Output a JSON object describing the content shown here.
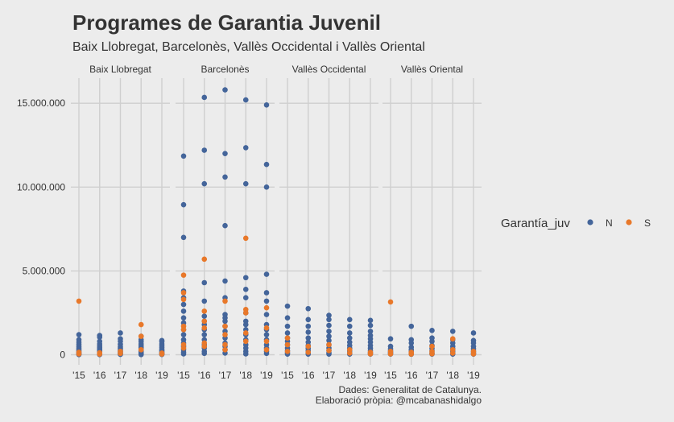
{
  "chart_data": {
    "type": "scatter",
    "title": "Programes de Garantia Juvenil",
    "subtitle": "Baix Llobregat, Barcelonès, Vallès Occidental i Vallès Oriental",
    "caption_line1": "Dades: Generalitat de Catalunya.",
    "caption_line2": "Elaboració pròpia: @mcabanashidalgo",
    "legend_title": "Garantía_juv",
    "ylim": [
      -600000,
      16500000
    ],
    "y_ticks": [
      0,
      5000000,
      10000000,
      15000000
    ],
    "y_tick_labels": [
      "0",
      "5.000.000",
      "10.000.000",
      "15.000.000"
    ],
    "x_categories": [
      "'15",
      "'16",
      "'17",
      "'18",
      "'19"
    ],
    "grid": true,
    "legend_position": "right",
    "series": [
      {
        "name": "N",
        "color": "#44659a"
      },
      {
        "name": "S",
        "color": "#e8782a"
      }
    ],
    "facets": [
      {
        "name": "Baix Llobregat",
        "N": [
          [
            1200000,
            900000,
            750000,
            620000,
            500000,
            400000,
            320000,
            250000,
            180000,
            120000,
            70000,
            30000,
            10000
          ],
          [
            1150000,
            1050000,
            800000,
            650000,
            520000,
            420000,
            330000,
            250000,
            180000,
            120000,
            70000,
            30000,
            10000
          ],
          [
            1300000,
            950000,
            800000,
            620000,
            480000,
            380000,
            290000,
            210000,
            150000,
            100000,
            60000,
            20000
          ],
          [
            1100000,
            900000,
            780000,
            640000,
            520000,
            420000,
            330000,
            250000,
            180000,
            120000,
            70000,
            30000,
            10000
          ],
          [
            850000,
            780000,
            650000,
            540000,
            430000,
            340000,
            260000,
            190000,
            130000,
            80000,
            40000,
            15000
          ]
        ],
        "S": [
          [
            3200000,
            150000,
            50000
          ],
          [
            120000,
            40000
          ],
          [
            200000,
            80000
          ],
          [
            1800000,
            1100000,
            300000
          ],
          [
            100000,
            40000
          ]
        ]
      },
      {
        "name": "Barcelonès",
        "N": [
          [
            11850000,
            8950000,
            7000000,
            3800000,
            3400000,
            3000000,
            2600000,
            2200000,
            1900000,
            1500000,
            1200000,
            900000,
            700000,
            500000,
            300000,
            150000,
            50000
          ],
          [
            15350000,
            12200000,
            10200000,
            4300000,
            3200000,
            2300000,
            2000000,
            1800000,
            1500000,
            1200000,
            900000,
            600000,
            400000,
            200000,
            80000
          ],
          [
            15800000,
            12000000,
            10600000,
            7700000,
            4400000,
            3400000,
            2400000,
            2200000,
            2000000,
            1700000,
            1400000,
            1000000,
            700000,
            500000,
            300000,
            100000
          ],
          [
            15200000,
            12350000,
            10200000,
            4600000,
            3900000,
            3400000,
            2500000,
            2000000,
            1800000,
            1500000,
            1200000,
            900000,
            600000,
            400000,
            200000,
            50000
          ],
          [
            14900000,
            11350000,
            10000000,
            4800000,
            3700000,
            3200000,
            2400000,
            1800000,
            1500000,
            1200000,
            900000,
            600000,
            400000,
            200000,
            80000
          ]
        ],
        "S": [
          [
            4750000,
            3700000,
            3300000,
            1700000,
            1500000,
            600000,
            400000
          ],
          [
            5700000,
            2600000,
            2000000,
            1600000,
            700000,
            500000
          ],
          [
            3200000,
            1700000,
            1200000,
            600000,
            300000
          ],
          [
            6950000,
            2700000,
            2500000,
            1300000,
            800000
          ],
          [
            2800000,
            1600000,
            800000,
            300000
          ]
        ]
      },
      {
        "name": "Vallès Occidental",
        "N": [
          [
            2900000,
            2200000,
            1700000,
            1300000,
            1000000,
            800000,
            600000,
            400000,
            250000,
            120000,
            40000
          ],
          [
            2750000,
            2100000,
            1700000,
            1350000,
            1000000,
            750000,
            550000,
            380000,
            240000,
            120000,
            40000
          ],
          [
            2350000,
            2100000,
            1750000,
            1400000,
            1100000,
            850000,
            600000,
            400000,
            250000,
            120000,
            40000
          ],
          [
            2100000,
            1700000,
            1300000,
            1000000,
            750000,
            550000,
            380000,
            240000,
            120000,
            40000
          ],
          [
            2050000,
            1750000,
            1400000,
            1150000,
            950000,
            750000,
            550000,
            380000,
            240000,
            120000,
            40000
          ]
        ],
        "S": [
          [
            1000000,
            600000,
            200000
          ],
          [
            500000,
            150000
          ],
          [
            600000,
            250000
          ],
          [
            300000,
            100000
          ],
          [
            150000,
            50000
          ]
        ]
      },
      {
        "name": "Vallès Oriental",
        "N": [
          [
            950000,
            500000,
            350000,
            250000,
            160000,
            90000,
            40000
          ],
          [
            1700000,
            900000,
            700000,
            450000,
            300000,
            180000,
            90000,
            30000
          ],
          [
            1450000,
            1000000,
            800000,
            550000,
            380000,
            240000,
            120000,
            40000
          ],
          [
            1400000,
            900000,
            700000,
            500000,
            350000,
            220000,
            110000,
            40000
          ],
          [
            1300000,
            850000,
            700000,
            500000,
            350000,
            220000,
            110000,
            40000
          ]
        ],
        "S": [
          [
            3150000,
            200000,
            50000
          ],
          [
            150000,
            40000
          ],
          [
            500000,
            200000,
            60000
          ],
          [
            950000,
            300000,
            100000
          ],
          [
            200000,
            50000
          ]
        ]
      }
    ]
  }
}
